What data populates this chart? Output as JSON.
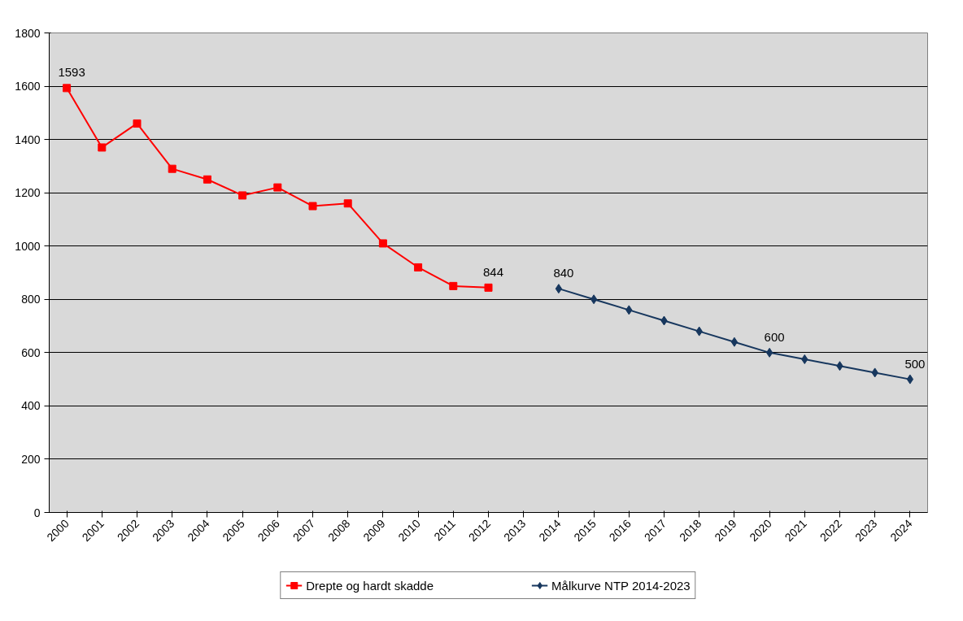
{
  "chart_data": {
    "type": "line",
    "categories": [
      "2000",
      "2001",
      "2002",
      "2003",
      "2004",
      "2005",
      "2006",
      "2007",
      "2008",
      "2009",
      "2010",
      "2011",
      "2012",
      "2013",
      "2014",
      "2015",
      "2016",
      "2017",
      "2018",
      "2019",
      "2020",
      "2021",
      "2022",
      "2023",
      "2024"
    ],
    "series": [
      {
        "name": "Drepte og hardt skadde",
        "color": "#ff0000",
        "marker": "square",
        "values": [
          1593,
          1370,
          1460,
          1290,
          1250,
          1190,
          1220,
          1150,
          1160,
          1010,
          920,
          850,
          844,
          null,
          null,
          null,
          null,
          null,
          null,
          null,
          null,
          null,
          null,
          null,
          null
        ],
        "value_labels": [
          "1593",
          null,
          null,
          null,
          null,
          null,
          null,
          null,
          null,
          null,
          null,
          null,
          "844",
          null,
          null,
          null,
          null,
          null,
          null,
          null,
          null,
          null,
          null,
          null,
          null
        ]
      },
      {
        "name": "Målkurve NTP 2014-2023",
        "color": "#17375e",
        "marker": "diamond",
        "values": [
          null,
          null,
          null,
          null,
          null,
          null,
          null,
          null,
          null,
          null,
          null,
          null,
          null,
          null,
          840,
          800,
          760,
          720,
          680,
          640,
          600,
          575,
          550,
          525,
          500
        ],
        "value_labels": [
          null,
          null,
          null,
          null,
          null,
          null,
          null,
          null,
          null,
          null,
          null,
          null,
          null,
          null,
          "840",
          null,
          null,
          null,
          null,
          null,
          "600",
          null,
          null,
          null,
          "500"
        ]
      }
    ],
    "ylim": [
      0,
      1800
    ],
    "yticks": [
      0,
      200,
      400,
      600,
      800,
      1000,
      1200,
      1400,
      1600,
      1800
    ],
    "grid": "y",
    "legend": "bottom"
  }
}
